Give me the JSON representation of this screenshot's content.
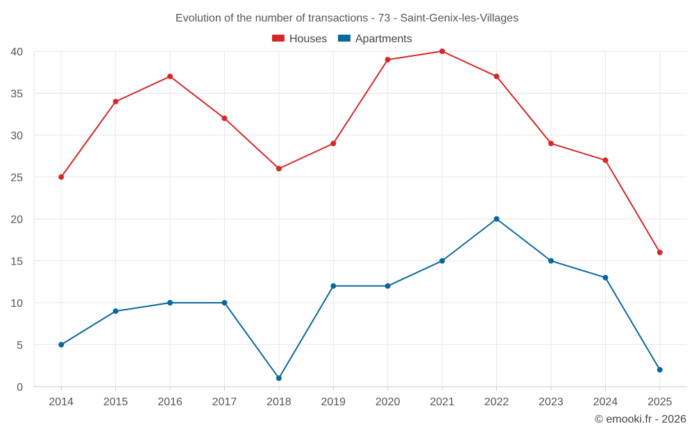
{
  "chart_data": {
    "type": "line",
    "title": "Evolution of the number of transactions - 73 - Saint-Genix-les-Villages",
    "categories": [
      "2014",
      "2015",
      "2016",
      "2017",
      "2018",
      "2019",
      "2020",
      "2021",
      "2022",
      "2023",
      "2024",
      "2025"
    ],
    "series": [
      {
        "name": "Houses",
        "color": "#d62728",
        "values": [
          25,
          34,
          37,
          32,
          26,
          29,
          39,
          40,
          37,
          29,
          27,
          16
        ]
      },
      {
        "name": "Apartments",
        "color": "#08689e",
        "values": [
          5,
          9,
          10,
          10,
          1,
          12,
          12,
          15,
          20,
          15,
          13,
          2
        ]
      }
    ],
    "ylim": [
      0,
      40
    ],
    "yticks": [
      "0",
      "5",
      "10",
      "15",
      "20",
      "25",
      "30",
      "35",
      "40"
    ],
    "xlabel": "",
    "ylabel": "",
    "grid": true,
    "legend_position": "top-center"
  },
  "credit": "© emooki.fr - 2026"
}
